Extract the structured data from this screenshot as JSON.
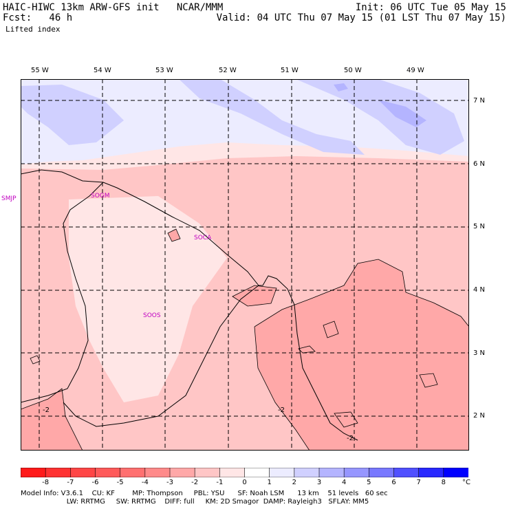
{
  "header": {
    "line1_left": "HAIC-HIWC 13km ARW-GFS init   NCAR/MMM",
    "line1_right": "Init: 06 UTC Tue 05 May 15",
    "line2_left": "Fcst:   46 h",
    "line2_right": "Valid: 04 UTC Thu 07 May 15 (01 LST Thu 07 May 15)",
    "field": "Lifted index"
  },
  "longitudes": [
    "55 W",
    "54 W",
    "53 W",
    "52 W",
    "51 W",
    "50 W",
    "49 W"
  ],
  "latitudes": [
    "7 N",
    "6 N",
    "5 N",
    "4 N",
    "3 N",
    "2 N"
  ],
  "stations": [
    "SMJP",
    "SOGM",
    "SOCA",
    "SOOS"
  ],
  "contour_labels": [
    "-2",
    "-2",
    "-2"
  ],
  "colorbar": {
    "labels": [
      "-8",
      "-7",
      "-6",
      "-5",
      "-4",
      "-3",
      "-2",
      "-1",
      "0",
      "1",
      "2",
      "3",
      "4",
      "5",
      "6",
      "7",
      "8"
    ],
    "unit": "°C",
    "colors": [
      "#ff1a1a",
      "#ff3232",
      "#ff4646",
      "#ff5a5a",
      "#ff7070",
      "#ff8a8a",
      "#ffa8a8",
      "#ffc6c6",
      "#ffe6e6",
      "#ffffff",
      "#ececff",
      "#d0d0ff",
      "#b4b4ff",
      "#9696ff",
      "#7878ff",
      "#5050ff",
      "#2828ff",
      "#0000ff"
    ]
  },
  "footer": {
    "line1": "Model Info: V3.6.1    CU: KF        MP: Thompson     PBL: YSU      SF: Noah LSM      13 km    51 levels   60 sec",
    "line2": "                     LW: RRTMG     SW: RRTMG    DIFF: full     KM: 2D Smagor  DAMP: Rayleigh3   SFLAY: MM5"
  }
}
